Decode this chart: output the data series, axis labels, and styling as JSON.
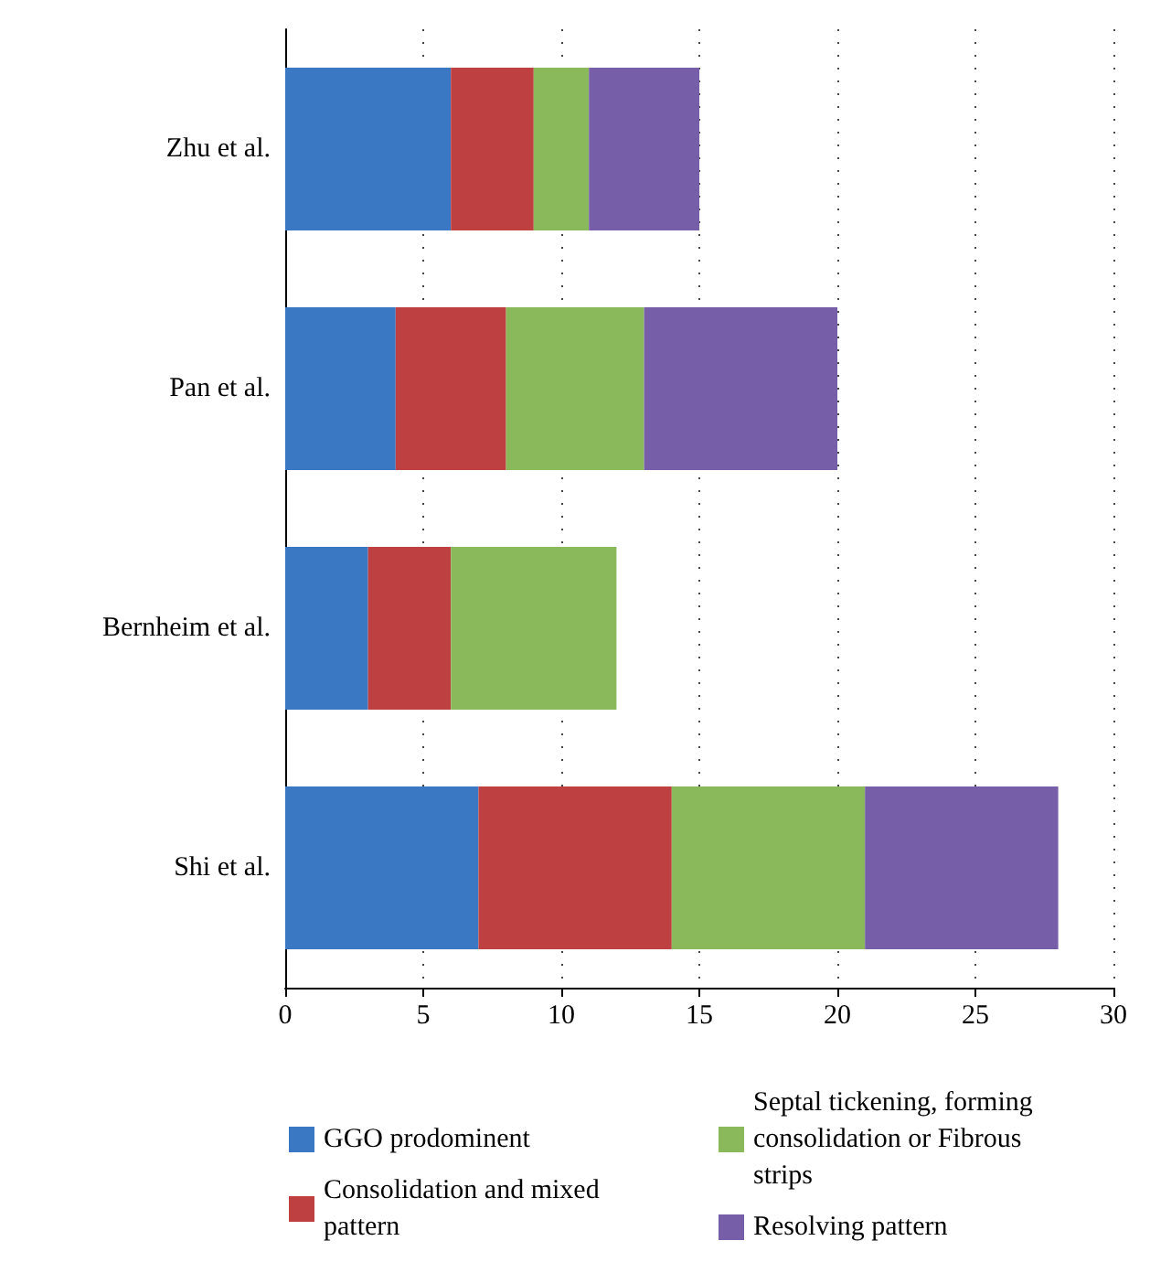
{
  "chart_data": {
    "type": "bar",
    "orientation": "horizontal",
    "stacked": true,
    "categories": [
      "Zhu et al.",
      "Pan et al.",
      "Bernheim et al.",
      "Shi et al."
    ],
    "series": [
      {
        "name": "GGO prodominent",
        "color": "#3a78c3",
        "values": [
          6,
          4,
          3,
          7
        ]
      },
      {
        "name": "Consolidation and mixed pattern",
        "color": "#bf4040",
        "values": [
          3,
          4,
          3,
          7
        ]
      },
      {
        "name": "Septal tickening, forming consolidation or Fibrous strips",
        "color": "#89b95a",
        "values": [
          2,
          5,
          6,
          7
        ]
      },
      {
        "name": "Resolving pattern",
        "color": "#765ea8",
        "values": [
          4,
          7,
          0,
          7
        ]
      }
    ],
    "xlim": [
      0,
      30
    ],
    "xticks": [
      0,
      5,
      10,
      15,
      20,
      25,
      30
    ],
    "grid": "x",
    "legend": "bottom"
  }
}
